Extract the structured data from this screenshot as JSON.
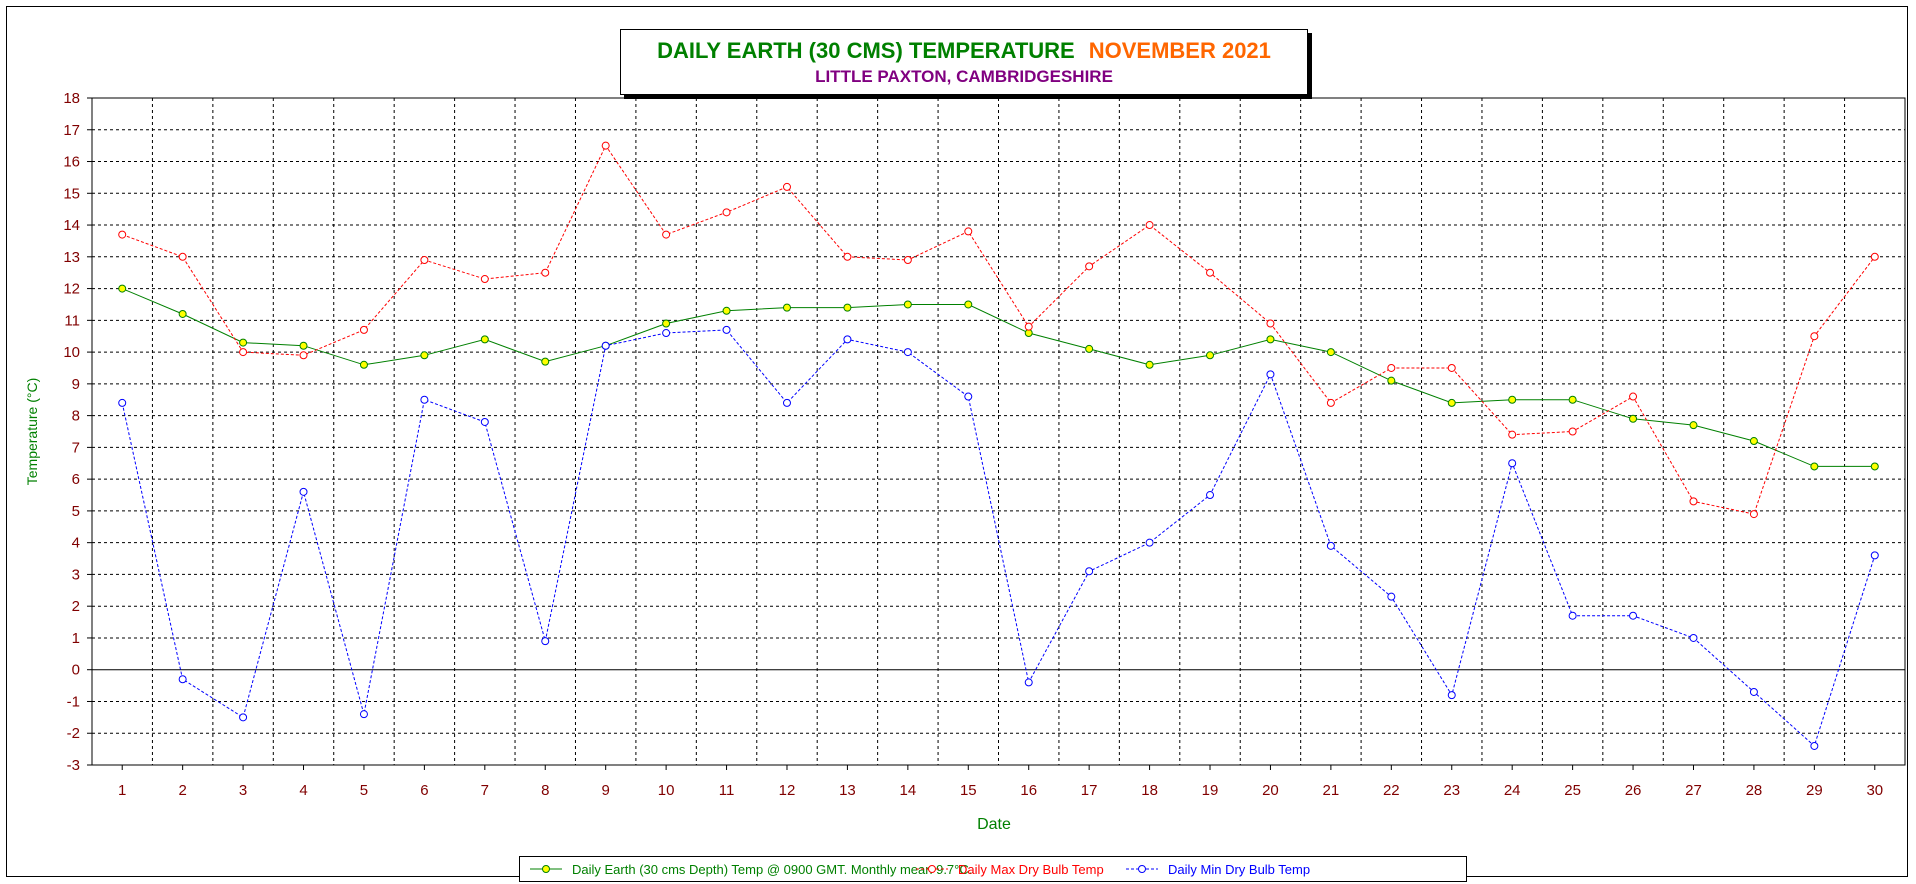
{
  "chart_data": {
    "type": "line",
    "title": "DAILY EARTH (30 CMS) TEMPERATURE",
    "title_month": "NOVEMBER 2021",
    "subtitle": "LITTLE PAXTON, CAMBRIDGESHIRE",
    "xlabel": "Date",
    "ylabel": "Temperature (°C)",
    "ylim": [
      -3,
      18
    ],
    "grid": true,
    "legend_placement": "bottom",
    "x": [
      1,
      2,
      3,
      4,
      5,
      6,
      7,
      8,
      9,
      10,
      11,
      12,
      13,
      14,
      15,
      16,
      17,
      18,
      19,
      20,
      21,
      22,
      23,
      24,
      25,
      26,
      27,
      28,
      29,
      30
    ],
    "yticks": [
      -3,
      -2,
      -1,
      0,
      1,
      2,
      3,
      4,
      5,
      6,
      7,
      8,
      9,
      10,
      11,
      12,
      13,
      14,
      15,
      16,
      17,
      18
    ],
    "series": [
      {
        "name": "Daily Earth (30 cms Depth) Temp @ 0900 GMT. Monthly mean 9.7°C.",
        "color": "#008000",
        "marker_fill": "#ffff00",
        "dashed": false,
        "values": [
          12.0,
          11.2,
          10.3,
          10.2,
          9.6,
          9.9,
          10.4,
          9.7,
          10.2,
          10.9,
          11.3,
          11.4,
          11.4,
          11.5,
          11.5,
          10.6,
          10.1,
          9.6,
          9.9,
          10.4,
          10.0,
          9.1,
          8.4,
          8.5,
          8.5,
          7.9,
          7.7,
          7.2,
          6.4,
          6.4
        ]
      },
      {
        "name": "Daily Max Dry Bulb Temp",
        "color": "#ff0000",
        "marker_fill": "#ffffff",
        "dashed": true,
        "values": [
          13.7,
          13.0,
          10.0,
          9.9,
          10.7,
          12.9,
          12.3,
          12.5,
          16.5,
          13.7,
          14.4,
          15.2,
          13.0,
          12.9,
          13.8,
          10.8,
          12.7,
          14.0,
          12.5,
          10.9,
          8.4,
          9.5,
          9.5,
          7.4,
          7.5,
          8.6,
          5.3,
          4.9,
          10.5,
          13.0
        ]
      },
      {
        "name": "Daily Min Dry Bulb Temp",
        "color": "#0000ff",
        "marker_fill": "#ffffff",
        "dashed": true,
        "values": [
          8.4,
          -0.3,
          -1.5,
          5.6,
          -1.4,
          8.5,
          7.8,
          0.9,
          10.2,
          10.6,
          10.7,
          8.4,
          10.4,
          10.0,
          8.6,
          -0.4,
          3.1,
          4.0,
          5.5,
          9.3,
          3.9,
          2.3,
          -0.8,
          6.5,
          1.7,
          1.7,
          1.0,
          -0.7,
          -2.4,
          3.6
        ]
      }
    ],
    "colors": {
      "axis_text": "#800000",
      "axis_label": "#008000",
      "grid": "#000000"
    }
  }
}
